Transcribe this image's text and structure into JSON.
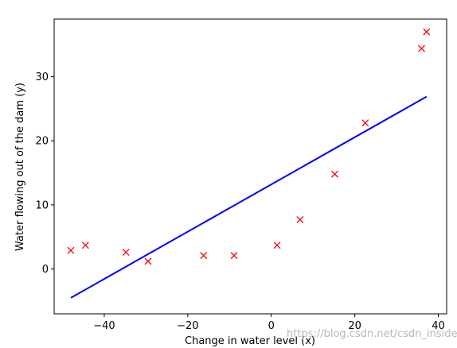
{
  "chart_data": {
    "type": "scatter",
    "title": "",
    "xlabel": "Change in water level (x)",
    "ylabel": "Water flowing out of the dam (y)",
    "xlim": [
      -52,
      42
    ],
    "ylim": [
      -7,
      39
    ],
    "xticks": [
      -40,
      -20,
      0,
      20,
      40
    ],
    "yticks": [
      0,
      10,
      20,
      30
    ],
    "grid": false,
    "series": [
      {
        "kind": "scatter",
        "marker": "x",
        "color": "#ff0000",
        "points": [
          [
            -48,
            2.9
          ],
          [
            -44.5,
            3.7
          ],
          [
            -34.8,
            2.6
          ],
          [
            -29.5,
            1.2
          ],
          [
            -16.2,
            2.1
          ],
          [
            -8.9,
            2.1
          ],
          [
            1.4,
            3.7
          ],
          [
            6.9,
            7.7
          ],
          [
            15.2,
            14.8
          ],
          [
            22.5,
            22.8
          ],
          [
            36,
            34.4
          ],
          [
            37.2,
            37.0
          ]
        ]
      },
      {
        "kind": "line",
        "color": "#0000ff",
        "points": [
          [
            -48,
            -4.5
          ],
          [
            37.2,
            26.9
          ]
        ]
      }
    ]
  },
  "watermark": "https://blog.csdn.net/csdn_inside"
}
